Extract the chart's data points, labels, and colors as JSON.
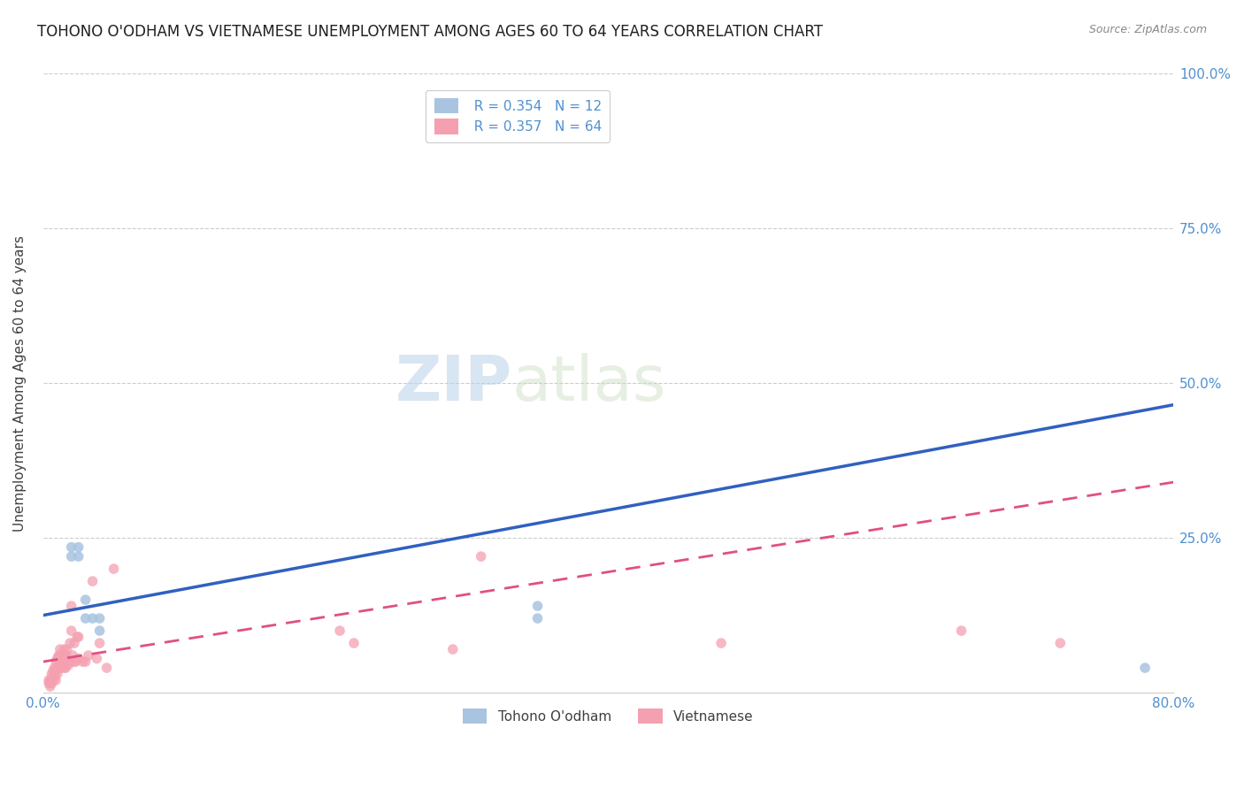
{
  "title": "TOHONO O'ODHAM VS VIETNAMESE UNEMPLOYMENT AMONG AGES 60 TO 64 YEARS CORRELATION CHART",
  "source": "Source: ZipAtlas.com",
  "ylabel": "Unemployment Among Ages 60 to 64 years",
  "xlim": [
    0.0,
    0.8
  ],
  "ylim": [
    0.0,
    1.0
  ],
  "xticks": [
    0.0,
    0.8
  ],
  "xticklabels": [
    "0.0%",
    "80.0%"
  ],
  "yticks": [
    0.25,
    0.5,
    0.75,
    1.0
  ],
  "yticklabels": [
    "25.0%",
    "50.0%",
    "75.0%",
    "100.0%"
  ],
  "legend_R1": "R = 0.354",
  "legend_N1": "N = 12",
  "legend_R2": "R = 0.357",
  "legend_N2": "N = 64",
  "color_tohono": "#a8c4e0",
  "color_vietnamese": "#f4a0b0",
  "color_line_tohono": "#3060c0",
  "color_line_vietnamese": "#e05080",
  "color_axis": "#5090d0",
  "color_title": "#202020",
  "watermark_zip": "ZIP",
  "watermark_atlas": "atlas",
  "tohono_x": [
    0.02,
    0.02,
    0.025,
    0.025,
    0.03,
    0.03,
    0.035,
    0.04,
    0.04,
    0.35,
    0.35,
    0.78
  ],
  "tohono_y": [
    0.22,
    0.235,
    0.235,
    0.22,
    0.15,
    0.12,
    0.12,
    0.12,
    0.1,
    0.14,
    0.12,
    0.04
  ],
  "vietnamese_x": [
    0.004,
    0.004,
    0.005,
    0.005,
    0.006,
    0.006,
    0.006,
    0.007,
    0.007,
    0.008,
    0.008,
    0.008,
    0.009,
    0.009,
    0.009,
    0.01,
    0.01,
    0.01,
    0.011,
    0.011,
    0.012,
    0.012,
    0.012,
    0.013,
    0.013,
    0.013,
    0.014,
    0.014,
    0.015,
    0.015,
    0.015,
    0.016,
    0.016,
    0.016,
    0.017,
    0.017,
    0.018,
    0.018,
    0.019,
    0.019,
    0.02,
    0.02,
    0.021,
    0.022,
    0.022,
    0.023,
    0.024,
    0.025,
    0.025,
    0.028,
    0.03,
    0.032,
    0.035,
    0.038,
    0.04,
    0.045,
    0.05,
    0.21,
    0.22,
    0.29,
    0.31,
    0.48,
    0.65,
    0.72
  ],
  "vietnamese_y": [
    0.015,
    0.02,
    0.01,
    0.02,
    0.015,
    0.02,
    0.03,
    0.02,
    0.035,
    0.025,
    0.03,
    0.04,
    0.02,
    0.035,
    0.05,
    0.04,
    0.055,
    0.03,
    0.06,
    0.04,
    0.04,
    0.06,
    0.07,
    0.05,
    0.06,
    0.04,
    0.045,
    0.055,
    0.06,
    0.07,
    0.04,
    0.05,
    0.06,
    0.04,
    0.05,
    0.07,
    0.045,
    0.05,
    0.08,
    0.05,
    0.1,
    0.14,
    0.06,
    0.08,
    0.05,
    0.05,
    0.09,
    0.09,
    0.055,
    0.05,
    0.05,
    0.06,
    0.18,
    0.055,
    0.08,
    0.04,
    0.2,
    0.1,
    0.08,
    0.07,
    0.22,
    0.08,
    0.1,
    0.08
  ],
  "tohono_line_x": [
    0.0,
    0.8
  ],
  "tohono_line_y": [
    0.125,
    0.465
  ],
  "vietnamese_line_x": [
    0.0,
    0.8
  ],
  "vietnamese_line_y": [
    0.05,
    0.34
  ],
  "marker_size": 70,
  "title_fontsize": 12,
  "axis_fontsize": 11,
  "tick_fontsize": 11,
  "source_fontsize": 9,
  "watermark_fontsize_zip": 52,
  "watermark_fontsize_atlas": 52
}
